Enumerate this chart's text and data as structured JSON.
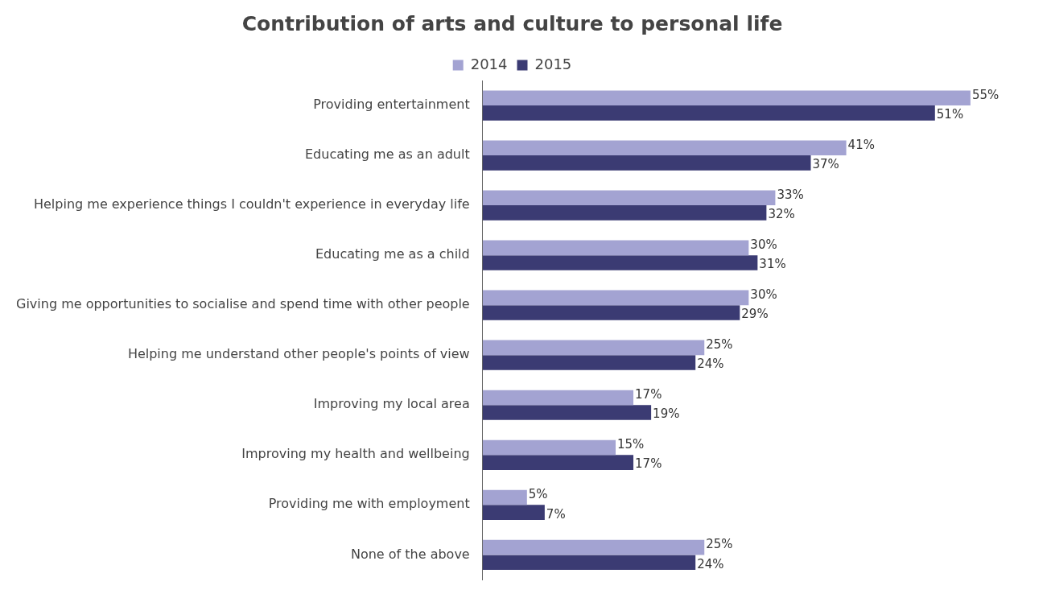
{
  "chart_data": {
    "type": "bar",
    "orientation": "horizontal",
    "title": "Contribution of arts and culture to personal life",
    "categories": [
      "Providing entertainment",
      "Educating me as an adult",
      "Helping me experience things I couldn't experience in everyday life",
      "Educating me as a child",
      "Giving me opportunities to socialise and spend time with other people",
      "Helping me understand other people's points of view",
      "Improving my local area",
      "Improving my health and wellbeing",
      "Providing me with employment",
      "None of the above"
    ],
    "series": [
      {
        "name": "2014",
        "color": "#a3a3d2",
        "values": [
          55,
          41,
          33,
          30,
          30,
          25,
          17,
          15,
          5,
          25
        ],
        "value_labels": [
          "55%",
          "41%",
          "33%",
          "30%",
          "30%",
          "25%",
          "17%",
          "15%",
          "5%",
          "25%"
        ]
      },
      {
        "name": "2015",
        "color": "#3b3b73",
        "values": [
          51,
          37,
          32,
          31,
          29,
          24,
          19,
          17,
          7,
          24
        ],
        "value_labels": [
          "51%",
          "37%",
          "32%",
          "31%",
          "29%",
          "24%",
          "19%",
          "17%",
          "7%",
          "24%"
        ]
      }
    ],
    "legend": "top",
    "tick_labels": "y",
    "grid": false
  }
}
